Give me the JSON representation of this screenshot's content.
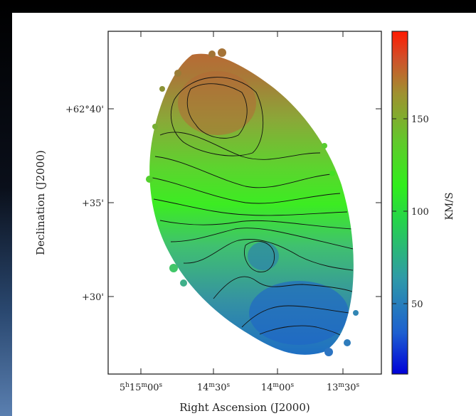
{
  "chart_data": {
    "type": "heatmap",
    "title": "",
    "xlabel": "Right Ascension (J2000)",
    "ylabel": "Declination (J2000)",
    "colorbar_label": "KM/S",
    "x_ticks": [
      {
        "main": "5",
        "sup1": "h",
        "mid": "15",
        "sup2": "m",
        "end": "00",
        "sup3": "s"
      },
      {
        "main": "",
        "sup1": "",
        "mid": "14",
        "sup2": "m",
        "end": "30",
        "sup3": "s"
      },
      {
        "main": "",
        "sup1": "",
        "mid": "14",
        "sup2": "m",
        "end": "00",
        "sup3": "s"
      },
      {
        "main": "",
        "sup1": "",
        "mid": "13",
        "sup2": "m",
        "end": "30",
        "sup3": "s"
      }
    ],
    "y_ticks": [
      "+62°40'",
      "+35'",
      "+30'"
    ],
    "colorbar_ticks": [
      "150",
      "100",
      "50"
    ],
    "colorbar_range": [
      10,
      195
    ],
    "colormap": [
      "#0000d8",
      "#1d77c8",
      "#3fa0a0",
      "#28d848",
      "#34ee20",
      "#6ec02c",
      "#a09030",
      "#c8502a",
      "#ff1a00"
    ]
  }
}
